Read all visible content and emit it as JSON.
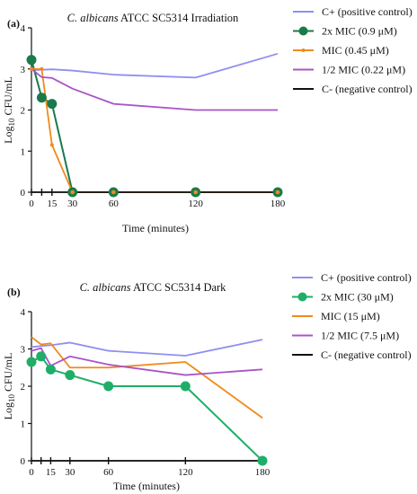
{
  "chart_data": [
    {
      "type": "line",
      "panel_label": "(a)",
      "title": "C. albicans ATCC SC5314 Irradiation",
      "title_italic": "C. albicans",
      "title_rest": " ATCC SC5314 Irradiation",
      "xlabel": "Time (minutes)",
      "ylabel": "Log10 CFU/mL",
      "xlim": [
        0,
        180
      ],
      "ylim": [
        0,
        4
      ],
      "xticks": [
        0,
        15,
        30,
        60,
        120,
        180
      ],
      "xtick_marks": [
        0,
        7.5,
        15,
        30,
        60,
        120,
        180
      ],
      "yticks": [
        0,
        1,
        2,
        3,
        4
      ],
      "grid": false,
      "legend_position": "right",
      "series": [
        {
          "name": "C+ (positive control)",
          "color": "#8f8ff0",
          "marker": "none",
          "x": [
            0,
            7.5,
            15,
            30,
            60,
            120,
            180
          ],
          "y": [
            2.97,
            2.98,
            2.99,
            2.96,
            2.86,
            2.79,
            3.37
          ]
        },
        {
          "name": "2x MIC (0.9 μM)",
          "color": "#1a7a4a",
          "marker": "circle-large",
          "x": [
            0,
            7.5,
            15,
            30,
            60,
            120,
            180
          ],
          "y": [
            3.22,
            2.3,
            2.15,
            0,
            0,
            0,
            0
          ]
        },
        {
          "name": "MIC (0.45 μM)",
          "color": "#f08a1c",
          "marker": "dot",
          "x": [
            0,
            7.5,
            15,
            30,
            60,
            120,
            180
          ],
          "y": [
            3.0,
            3.0,
            1.15,
            0,
            0,
            0,
            0
          ]
        },
        {
          "name": "1/2 MIC (0.22 μM)",
          "color": "#a855c8",
          "marker": "none",
          "x": [
            0,
            7.5,
            15,
            30,
            60,
            120,
            180
          ],
          "y": [
            3.0,
            2.8,
            2.78,
            2.52,
            2.15,
            2.0,
            2.0
          ]
        },
        {
          "name": "C- (negative control)",
          "color": "#111111",
          "marker": "none",
          "x": [
            0,
            180
          ],
          "y": [
            0,
            0
          ]
        }
      ],
      "end_markers_x": [
        30,
        60,
        120,
        180
      ]
    },
    {
      "type": "line",
      "panel_label": "(b)",
      "title": "C. albicans ATCC SC5314 Dark",
      "title_italic": "C. albicans",
      "title_rest": " ATCC SC5314 Dark",
      "xlabel": "Time (minutes)",
      "ylabel": "Log10 CFU/mL",
      "xlim": [
        0,
        180
      ],
      "ylim": [
        0,
        4
      ],
      "xticks": [
        0,
        15,
        30,
        60,
        120,
        180
      ],
      "xtick_marks": [
        0,
        7.5,
        15,
        30,
        60,
        120,
        180
      ],
      "yticks": [
        0,
        1,
        2,
        3,
        4
      ],
      "grid": false,
      "legend_position": "right",
      "series": [
        {
          "name": "C+ (positive control)",
          "color": "#8f8ff0",
          "marker": "none",
          "x": [
            0,
            7.5,
            15,
            30,
            60,
            120,
            180
          ],
          "y": [
            3.05,
            3.08,
            3.1,
            3.17,
            2.95,
            2.82,
            3.25
          ]
        },
        {
          "name": "2x MIC (30 μM)",
          "color": "#1fae68",
          "marker": "circle-large",
          "x": [
            0,
            7.5,
            15,
            30,
            60,
            120,
            180
          ],
          "y": [
            2.65,
            2.8,
            2.45,
            2.3,
            2.0,
            2.0,
            0
          ]
        },
        {
          "name": "MIC (15 μM)",
          "color": "#f08a1c",
          "marker": "none",
          "x": [
            0,
            7.5,
            15,
            30,
            60,
            120,
            180
          ],
          "y": [
            3.32,
            3.12,
            3.15,
            2.5,
            2.5,
            2.65,
            1.15
          ]
        },
        {
          "name": "1/2 MIC (7.5 μM)",
          "color": "#a855c8",
          "marker": "none",
          "x": [
            0,
            7.5,
            15,
            30,
            60,
            120,
            180
          ],
          "y": [
            2.95,
            3.02,
            2.55,
            2.8,
            2.58,
            2.3,
            2.45
          ]
        },
        {
          "name": "C- (negative control)",
          "color": "#111111",
          "marker": "none",
          "x": [
            0,
            180
          ],
          "y": [
            0,
            0
          ]
        }
      ],
      "end_markers_x": []
    }
  ]
}
